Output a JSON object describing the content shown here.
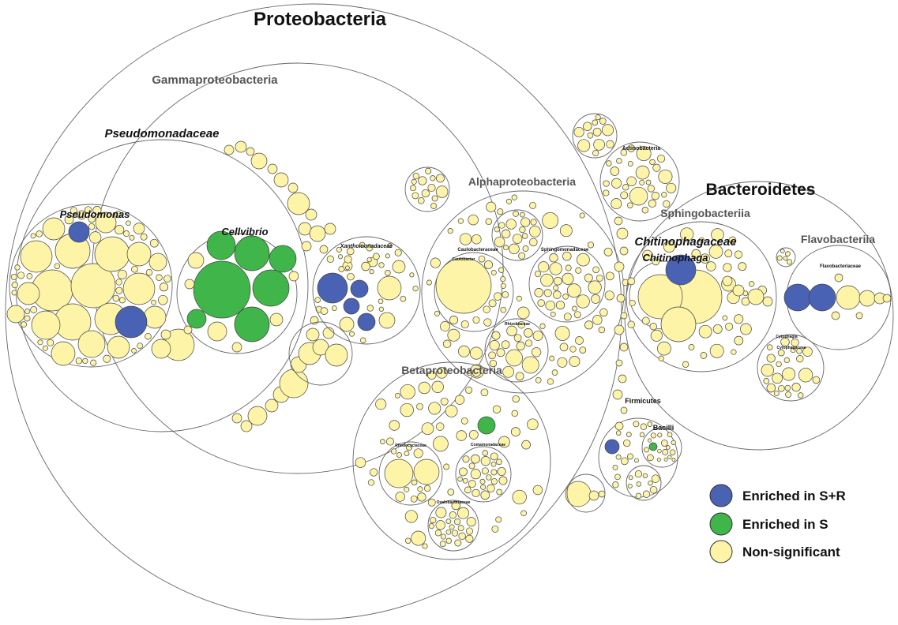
{
  "colors": {
    "enriched_sr": "#4a62b3",
    "enriched_s": "#3fb54a",
    "non_significant": "#fdf4a8",
    "outline": "#555555"
  },
  "labels": {
    "proteobacteria": "Proteobacteria",
    "gammaproteobacteria": "Gammaproteobacteria",
    "pseudomonadaceae": "Pseudomonadaceae",
    "pseudomonas": "Pseudomonas",
    "cellvibrio": "Cellvibrio",
    "xanthomonadaceae": "Xanthomonadaceae",
    "alphaproteobacteria": "Alphaproteobacteria",
    "caulobacteraceae": "Caulobacteraceae",
    "caulobacter": "Caulobacter",
    "sphingomonadaceae": "Sphingomonadaceae",
    "rhizobiaceae": "Rhizobiaceae",
    "betaproteobacteria": "Betaproteobacteria",
    "rhodocyclaceae": "Rhodocyclaceae",
    "comamonadaceae": "Comamonadaceae",
    "oxalobacteraceae": "Oxalobacteraceae",
    "actinobacteria": "Actinobacteria",
    "firmicutes": "Firmicutes",
    "bacilli": "Bacilli",
    "bacteroidetes": "Bacteroidetes",
    "sphingobacteriia": "Sphingobacteriia",
    "chitinophagaceae": "Chitinophagaceae",
    "chitinophaga": "Chitinophaga",
    "flavobacteriia": "Flavobacteriia",
    "flavobacteriaceae": "Flavobacteriaceae",
    "cytophagia": "Cytophagia",
    "cytophagaceae": "Cytophagaceae"
  },
  "legend": [
    {
      "label": "Enriched in S+R",
      "color": "#4a62b3"
    },
    {
      "label": "Enriched in S",
      "color": "#3fb54a"
    },
    {
      "label": "Non-significant",
      "color": "#fdf4a8"
    }
  ]
}
